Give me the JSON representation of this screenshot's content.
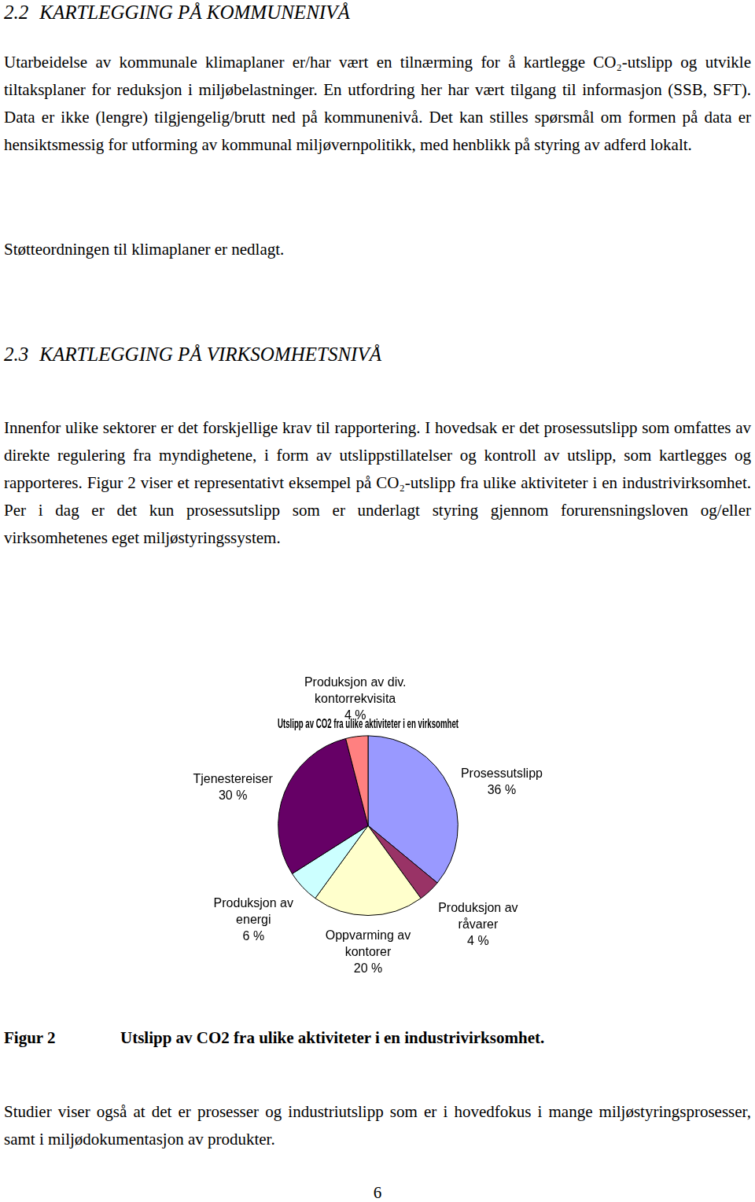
{
  "sections": [
    {
      "number": "2.2",
      "title": "KARTLEGGING PÅ KOMMUNENIVÅ",
      "paragraphs": [
        "Utarbeidelse av kommunale klimaplaner er/har vært en tilnærming for å kartlegge CO₂-utslipp og utvikle tiltaksplaner for reduksjon i miljøbelastninger. En utfordring her har vært tilgang til informasjon (SSB, SFT). Data er ikke (lengre) tilgjengelig/brutt ned på kommunenivå. Det kan stilles spørsmål om formen på data er hensiktsmessig for utforming av kommunal miljøvernpolitikk, med henblikk på styring av adferd lokalt.",
        "Støtteordningen til klimaplaner er nedlagt."
      ]
    },
    {
      "number": "2.3",
      "title": "KARTLEGGING PÅ VIRKSOMHETSNIVÅ",
      "paragraphs": [
        "Innenfor ulike sektorer er det forskjellige krav til rapportering. I hovedsak er det prosess­utslipp som omfattes av direkte regulering fra myndighetene, i form av utslippstillatelser og kontroll av utslipp, som kartlegges og rapporteres. Figur 2 viser et representativt eksempel på CO₂-utslipp fra ulike aktiviteter i en industrivirksomhet. Per i dag er det kun prosessutslipp som er underlagt styring gjennom forurensningsloven og/eller virksomhetenes eget miljøstyringssystem."
      ]
    }
  ],
  "chart_data": {
    "type": "pie",
    "title": "Utslipp av CO2 fra ulike aktiviteter i en virksomhet",
    "categories": [
      "Prosessutslipp",
      "Produksjon av råvarer",
      "Oppvarming av kontorer",
      "Produksjon av energi",
      "Tjenestereiser",
      "Produksjon av div. kontorrekvisita"
    ],
    "values": [
      36,
      4,
      20,
      6,
      30,
      4
    ],
    "value_labels": [
      "36 %",
      "4 %",
      "20 %",
      "6 %",
      "30 %",
      "4 %"
    ],
    "colors": [
      "#9999ff",
      "#993366",
      "#ffffcc",
      "#ccffff",
      "#660066",
      "#ff8080"
    ],
    "data_labels": true
  },
  "figure": {
    "label": "Figur 2",
    "caption": "Utslipp av CO2 fra ulike aktiviteter i en industrivirksomhet."
  },
  "closing_paragraph": "Studier viser også at det er prosesser og industriutslipp som er i hovedfokus i mange miljøstyringsprosesser, samt i miljødokumentasjon av produkter.",
  "page_number": 6
}
